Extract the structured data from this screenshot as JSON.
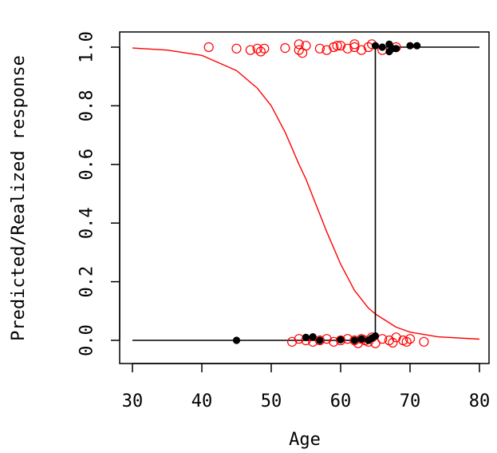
{
  "chart_data": {
    "type": "scatter",
    "title": "",
    "xlabel": "Age",
    "ylabel": "Predicted/Realized response",
    "xlim": [
      30,
      80
    ],
    "ylim": [
      0,
      1
    ],
    "x_ticks": [
      "30",
      "40",
      "50",
      "60",
      "70",
      "80"
    ],
    "y_ticks": [
      "0.0",
      "0.2",
      "0.4",
      "0.6",
      "0.8",
      "1.0"
    ],
    "grid": false,
    "colors": {
      "predicted": "#ff0000",
      "realized": "#000000",
      "frame": "#000000"
    },
    "series": [
      {
        "kind": "logistic-curve",
        "color": "#ff0000",
        "points": [
          [
            30,
            0.997
          ],
          [
            35,
            0.99
          ],
          [
            40,
            0.972
          ],
          [
            45,
            0.92
          ],
          [
            48,
            0.86
          ],
          [
            50,
            0.8
          ],
          [
            52,
            0.71
          ],
          [
            54,
            0.6
          ],
          [
            55,
            0.55
          ],
          [
            56,
            0.49
          ],
          [
            57,
            0.43
          ],
          [
            58,
            0.37
          ],
          [
            60,
            0.26
          ],
          [
            62,
            0.17
          ],
          [
            64,
            0.11
          ],
          [
            65,
            0.09
          ],
          [
            68,
            0.045
          ],
          [
            70,
            0.028
          ],
          [
            74,
            0.012
          ],
          [
            80,
            0.004
          ]
        ]
      },
      {
        "kind": "step-line",
        "color": "#000000",
        "points": [
          [
            30,
            0
          ],
          [
            65,
            0
          ],
          [
            65,
            1
          ],
          [
            80,
            1
          ]
        ]
      },
      {
        "kind": "open-circles",
        "color": "#ff0000",
        "points": [
          [
            41,
            1.0
          ],
          [
            45,
            0.995
          ],
          [
            47,
            0.99
          ],
          [
            48,
            0.995
          ],
          [
            48.5,
            0.985
          ],
          [
            49,
            0.995
          ],
          [
            52,
            0.997
          ],
          [
            54,
            1.01
          ],
          [
            54,
            0.99
          ],
          [
            54.5,
            0.98
          ],
          [
            55,
            1.005
          ],
          [
            57,
            0.995
          ],
          [
            58,
            0.99
          ],
          [
            59,
            1.0
          ],
          [
            59.5,
            1.005
          ],
          [
            60,
            1.005
          ],
          [
            61,
            0.995
          ],
          [
            62,
            1.0
          ],
          [
            62,
            1.01
          ],
          [
            63,
            0.99
          ],
          [
            64,
            1.0
          ],
          [
            64.5,
            1.01
          ],
          [
            66,
            0.99
          ],
          [
            68,
            1.0
          ],
          [
            53,
            -0.005
          ],
          [
            54,
            0.005
          ],
          [
            55,
            0.0
          ],
          [
            56,
            -0.005
          ],
          [
            57,
            0.0
          ],
          [
            58,
            0.005
          ],
          [
            59,
            -0.005
          ],
          [
            60,
            0.0
          ],
          [
            61,
            0.005
          ],
          [
            62,
            0.0
          ],
          [
            62.5,
            -0.01
          ],
          [
            63,
            0.005
          ],
          [
            63.5,
            0.0
          ],
          [
            64,
            -0.005
          ],
          [
            64.5,
            0.01
          ],
          [
            65,
            -0.01
          ],
          [
            66,
            0.005
          ],
          [
            67,
            0.0
          ],
          [
            67.5,
            -0.008
          ],
          [
            68,
            0.01
          ],
          [
            69,
            0.0
          ],
          [
            69.5,
            -0.005
          ],
          [
            70,
            0.005
          ],
          [
            72,
            -0.005
          ]
        ]
      },
      {
        "kind": "filled-points",
        "color": "#000000",
        "points": [
          [
            45,
            0.0
          ],
          [
            55,
            0.01
          ],
          [
            56,
            0.012
          ],
          [
            57,
            0.0
          ],
          [
            60,
            0.002
          ],
          [
            62,
            0.0
          ],
          [
            63,
            0.005
          ],
          [
            64,
            0.0
          ],
          [
            64.5,
            0.008
          ],
          [
            65,
            0.015
          ],
          [
            65,
            1.005
          ],
          [
            66,
            1.0
          ],
          [
            67,
            1.01
          ],
          [
            67,
            0.985
          ],
          [
            67.5,
            0.995
          ],
          [
            68,
            0.995
          ],
          [
            70,
            1.005
          ],
          [
            71,
            1.005
          ]
        ]
      }
    ]
  }
}
